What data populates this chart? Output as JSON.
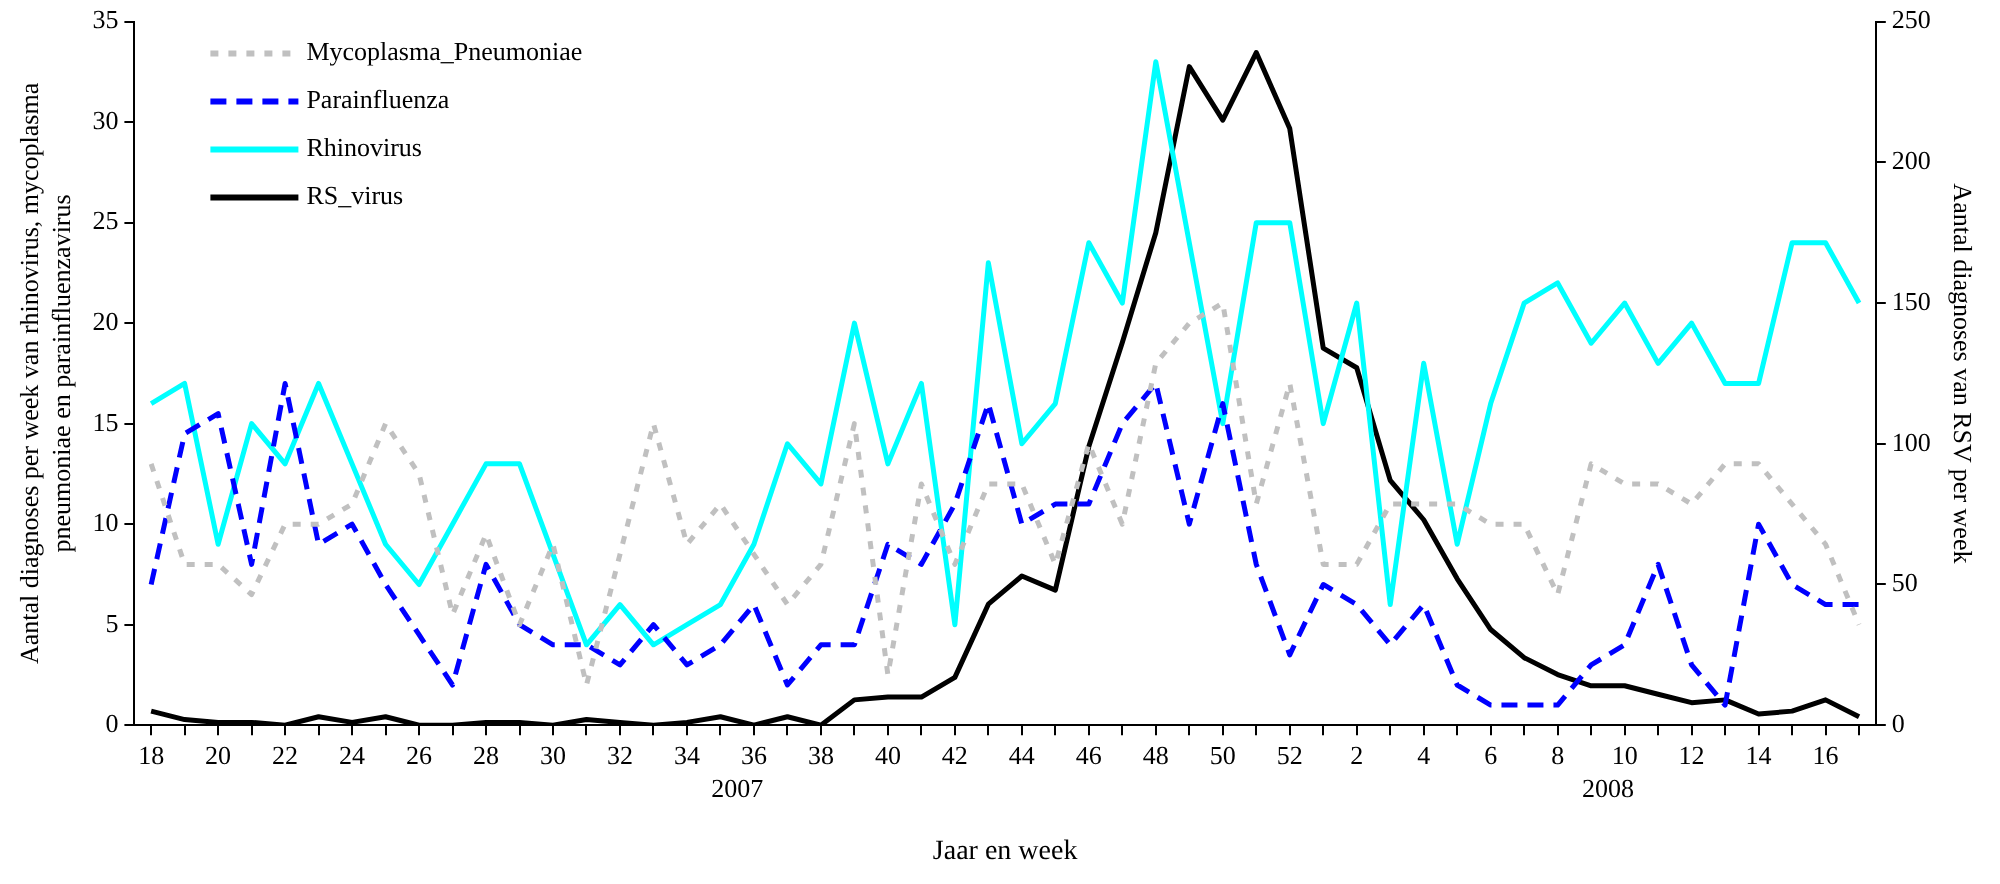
{
  "chart_data": {
    "type": "line",
    "categories": [
      "18",
      null,
      "20",
      null,
      "22",
      null,
      "24",
      null,
      "26",
      null,
      "28",
      null,
      "30",
      null,
      "32",
      null,
      "34",
      null,
      "36",
      null,
      "38",
      null,
      "40",
      null,
      "42",
      null,
      "44",
      null,
      "46",
      null,
      "48",
      null,
      "50",
      null,
      "52",
      null,
      "2",
      null,
      "4",
      null,
      "6",
      null,
      "8",
      null,
      "10",
      null,
      "12",
      null,
      "14",
      null,
      "16",
      null
    ],
    "series": [
      {
        "name": "Mycoplasma_Pneumoniae",
        "color": "#c0c0c0",
        "line_style": "dotted",
        "values": [
          13,
          8,
          8,
          6.5,
          10,
          10,
          11,
          15,
          12.5,
          5.5,
          9.5,
          5,
          9,
          2,
          8.5,
          15,
          9,
          11,
          8.5,
          6,
          8,
          15,
          2.5,
          12,
          8,
          12,
          12,
          8,
          14,
          10,
          18,
          20,
          21,
          11,
          17,
          8,
          8,
          11,
          11,
          11,
          10,
          10,
          6.5,
          13,
          12,
          12,
          11,
          13,
          13,
          11,
          9,
          5
        ]
      },
      {
        "name": "Parainfluenza",
        "color": "#0000ff",
        "line_style": "dashed",
        "values": [
          7,
          14.5,
          15.5,
          8,
          17,
          9,
          10,
          7,
          4.5,
          2,
          8,
          5,
          4,
          4,
          3,
          5,
          3,
          4,
          6,
          2,
          4,
          4,
          9,
          8,
          11,
          16,
          10,
          11,
          11,
          15,
          17,
          10,
          16,
          8,
          3.5,
          7,
          6,
          4,
          6,
          2,
          1,
          1,
          1,
          3,
          4,
          8,
          3,
          1,
          10,
          7,
          6,
          6
        ]
      },
      {
        "name": "Rhinovirus",
        "color": "#00ffff",
        "line_style": "solid",
        "values": [
          16,
          17,
          9,
          15,
          13,
          17,
          13,
          9,
          7,
          10,
          13,
          13,
          8.5,
          4,
          6,
          4,
          5,
          6,
          9,
          14,
          12,
          20,
          13,
          17,
          5,
          23,
          14,
          16,
          24,
          21,
          33,
          24,
          15,
          25,
          25,
          15,
          21,
          6,
          18,
          9,
          16,
          21,
          22,
          19,
          21,
          18,
          20,
          17,
          17,
          24,
          24,
          21
        ]
      },
      {
        "name": "RS_virus",
        "color": "#000000",
        "line_style": "solid",
        "axis": "y2",
        "values": [
          5,
          2,
          1,
          1,
          0,
          3,
          1,
          3,
          0,
          0,
          1,
          1,
          0,
          2,
          1,
          0,
          1,
          3,
          0,
          3,
          0,
          9,
          10,
          10,
          17,
          43,
          53,
          48,
          99,
          136,
          175,
          234,
          215,
          239,
          212,
          134,
          127,
          87,
          73,
          52,
          34,
          24,
          18,
          14,
          14,
          11,
          8,
          9,
          4,
          5,
          9,
          3
        ]
      }
    ],
    "ylim": [
      0,
      35
    ],
    "yticks": [
      0,
      5,
      10,
      15,
      20,
      25,
      30,
      35
    ],
    "y2lim": [
      0,
      250
    ],
    "y2ticks": [
      0,
      50,
      100,
      150,
      200,
      250
    ],
    "xlabel": "Jaar en week",
    "ylabel": "Aantal diagnoses per week van rhinovirus, mycoplasma pneumoniae en parainfluenzavirus",
    "y2label": "Aantal diagnoses van RSV per week",
    "annotations": [
      "2007",
      "2008"
    ],
    "legend": "top left",
    "grid": false,
    "marker": "none"
  }
}
